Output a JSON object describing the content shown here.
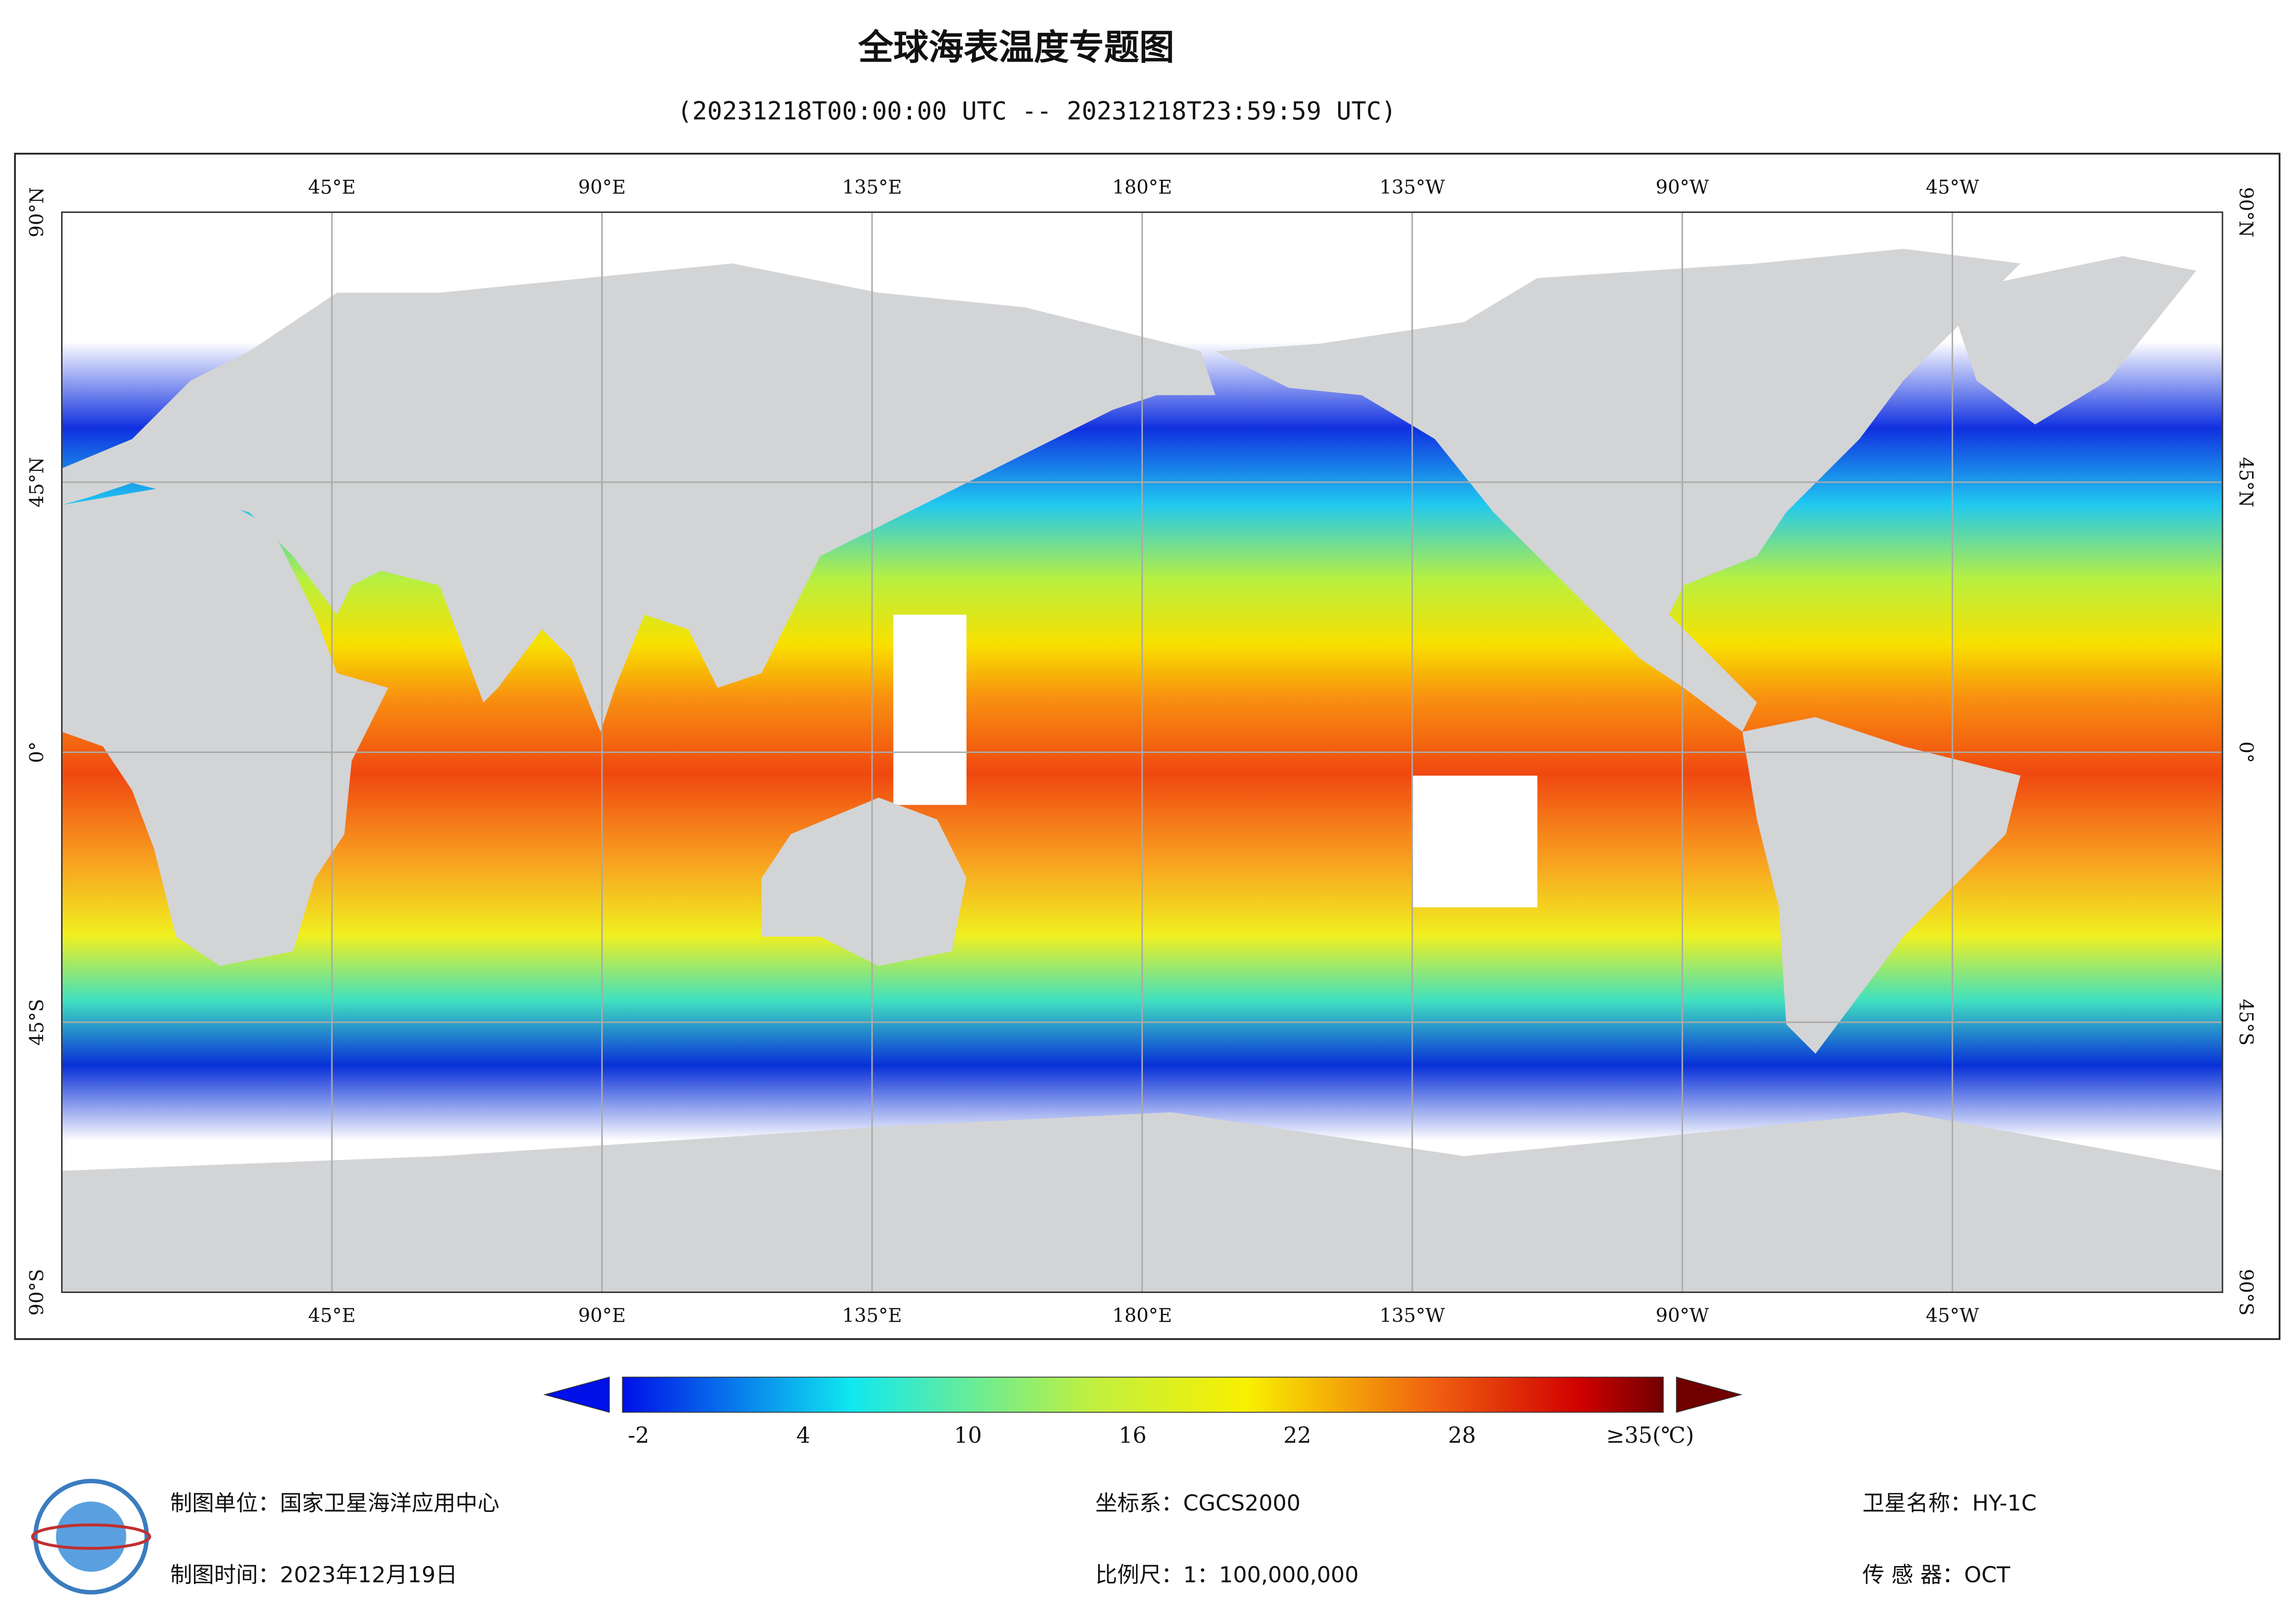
{
  "header": {
    "title": "全球海表温度专题图",
    "subtitle": "(20231218T00:00:00 UTC -- 20231218T23:59:59 UTC)"
  },
  "map": {
    "lon_labels": [
      "45°E",
      "90°E",
      "135°E",
      "180°E",
      "135°W",
      "90°W",
      "45°W"
    ],
    "lat_labels": [
      "90°N",
      "45°N",
      "0°",
      "45°S",
      "90°S"
    ]
  },
  "colorbar": {
    "labels": [
      "-2",
      "4",
      "10",
      "16",
      "22",
      "28",
      "≥35(℃)"
    ]
  },
  "footer": {
    "unit": "制图单位：国家卫星海洋应用中心",
    "date": "制图时间：2023年12月19日",
    "crs": "坐标系：CGCS2000",
    "scale": "比例尺：1：100,000,000",
    "satellite": "卫星名称：HY-1C",
    "sensor": "传 感 器：OCT"
  }
}
